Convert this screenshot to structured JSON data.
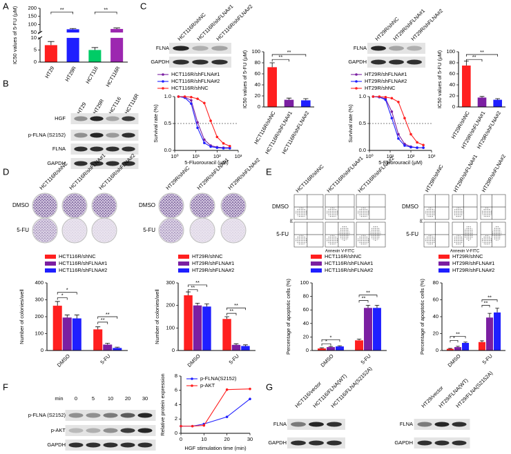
{
  "chart_data": [
    {
      "type": "bar",
      "ylabel": "IC50 values of 5-FU (μM)",
      "categories": [
        "HT29",
        "HT29R",
        "HCT116",
        "HCT116R"
      ],
      "values": [
        7,
        70,
        5,
        72
      ],
      "errors": [
        1.5,
        5,
        1,
        6
      ],
      "colors": [
        "#ff1f1f",
        "#1f1fff",
        "#00cc66",
        "#9c27b0"
      ],
      "ylim": [
        0,
        200
      ],
      "yticks": [
        0,
        5,
        10,
        50,
        100,
        150,
        200
      ],
      "axis_break": [
        10,
        50
      ],
      "annotations": [
        "**",
        "**"
      ]
    },
    {
      "type": "line",
      "ylabel": "Survival rate (%)",
      "xlabel": "5-Fluorouracil (μM)",
      "xscale": "log",
      "x": [
        1.5,
        3,
        6,
        12,
        25,
        50,
        100,
        200,
        400
      ],
      "xlim": [
        1,
        1000
      ],
      "xticks": [
        {
          "value": 1,
          "label": "10⁰"
        },
        {
          "value": 10,
          "label": "10¹"
        },
        {
          "value": 100,
          "label": "10²"
        },
        {
          "value": 1000,
          "label": "10³"
        }
      ],
      "ylim": [
        0,
        1
      ],
      "yticks": [
        {
          "value": 0,
          "label": "0.0"
        },
        0.5,
        {
          "value": 1,
          "label": "1.0"
        }
      ],
      "reference_line": 0.5,
      "series": [
        {
          "name": "HCT116R/shFLNA#1",
          "color": "#7b1fa2",
          "values": [
            1,
            0.99,
            0.93,
            0.52,
            0.2,
            0.09,
            0.06,
            0.05,
            0.05
          ]
        },
        {
          "name": "HCT116R/shFLNA#2",
          "color": "#1f1fff",
          "values": [
            1,
            0.98,
            0.87,
            0.42,
            0.14,
            0.07,
            0.05,
            0.04,
            0.04
          ]
        },
        {
          "name": "HCT116R/shNC",
          "color": "#ff1f1f",
          "values": [
            1,
            1,
            0.99,
            0.96,
            0.88,
            0.55,
            0.25,
            0.13,
            0.08
          ]
        }
      ]
    },
    {
      "type": "bar",
      "ylabel": "IC50 values of 5-FU (μM)",
      "categories": [
        "HCT116R/shNC",
        "HCT116R/shFLNA#1",
        "HCT116R/shFLNA#2"
      ],
      "values": [
        72,
        13,
        12
      ],
      "errors": [
        8,
        3,
        3
      ],
      "colors": [
        "#ff1f1f",
        "#7b1fa2",
        "#1f1fff"
      ],
      "ylim": [
        0,
        100
      ],
      "yticks": [
        0,
        20,
        40,
        60,
        80,
        100
      ],
      "annotations": [
        "**",
        "**"
      ]
    },
    {
      "type": "line",
      "ylabel": "Survival rate (%)",
      "xlabel": "5-Fluorouracil (μM)",
      "xscale": "log",
      "x": [
        1.5,
        3,
        6,
        12,
        25,
        50,
        100,
        200,
        400
      ],
      "xlim": [
        1,
        1000
      ],
      "xticks": [
        {
          "value": 1,
          "label": "10⁰"
        },
        {
          "value": 10,
          "label": "10¹"
        },
        {
          "value": 100,
          "label": "10²"
        },
        {
          "value": 1000,
          "label": "10³"
        }
      ],
      "ylim": [
        0,
        1
      ],
      "yticks": [
        {
          "value": 0,
          "label": "0.0"
        },
        0.5,
        {
          "value": 1,
          "label": "1.0"
        }
      ],
      "reference_line": 0.5,
      "series": [
        {
          "name": "HT29R/shFLNA#1",
          "color": "#7b1fa2",
          "values": [
            1,
            0.99,
            0.96,
            0.72,
            0.3,
            0.12,
            0.07,
            0.05,
            0.05
          ]
        },
        {
          "name": "HT29R/shFLNA#2",
          "color": "#1f1fff",
          "values": [
            1,
            0.99,
            0.94,
            0.6,
            0.22,
            0.09,
            0.06,
            0.05,
            0.05
          ]
        },
        {
          "name": "HT29R/shNC",
          "color": "#ff1f1f",
          "values": [
            1,
            1,
            0.99,
            0.97,
            0.9,
            0.6,
            0.3,
            0.15,
            0.1
          ]
        }
      ]
    },
    {
      "type": "bar",
      "ylabel": "IC50 values of 5-FU (μM)",
      "categories": [
        "HT29R/shNC",
        "HT29R/shFLNA#1",
        "HT29R/shFLNA#2"
      ],
      "values": [
        75,
        17,
        13
      ],
      "errors": [
        8,
        2,
        2
      ],
      "colors": [
        "#ff1f1f",
        "#7b1fa2",
        "#1f1fff"
      ],
      "ylim": [
        0,
        100
      ],
      "yticks": [
        0,
        20,
        40,
        60,
        80,
        100
      ],
      "annotations": [
        "**",
        "**"
      ]
    },
    {
      "type": "bar",
      "ylabel": "Number of colonies/well",
      "categories": [
        "DMSO",
        "5-FU"
      ],
      "ylim": [
        0,
        400
      ],
      "yticks": [
        0,
        100,
        200,
        300,
        400
      ],
      "annotations": [
        "*",
        "*",
        "**",
        "**"
      ],
      "series": [
        {
          "name": "HCT116R/shNC",
          "color": "#ff1f1f",
          "values": [
            265,
            125
          ],
          "errors": [
            25,
            15
          ]
        },
        {
          "name": "HCT116R/shFLNA#1",
          "color": "#7b1fa2",
          "values": [
            195,
            35
          ],
          "errors": [
            15,
            8
          ]
        },
        {
          "name": "HCT116R/shFLNA#2",
          "color": "#1f1fff",
          "values": [
            190,
            15
          ],
          "errors": [
            20,
            5
          ]
        }
      ]
    },
    {
      "type": "bar",
      "ylabel": "Number of colonies/well",
      "categories": [
        "DMSO",
        "5-FU"
      ],
      "ylim": [
        0,
        300
      ],
      "yticks": [
        0,
        100,
        200,
        300
      ],
      "annotations": [
        "**",
        "**",
        "**",
        "**"
      ],
      "series": [
        {
          "name": "HT29R/shNC",
          "color": "#ff1f1f",
          "values": [
            245,
            140
          ],
          "errors": [
            15,
            10
          ]
        },
        {
          "name": "HT29R/shFLNA#1",
          "color": "#7b1fa2",
          "values": [
            200,
            25
          ],
          "errors": [
            10,
            5
          ]
        },
        {
          "name": "HT29R/shFLNA#2",
          "color": "#1f1fff",
          "values": [
            195,
            20
          ],
          "errors": [
            12,
            5
          ]
        }
      ]
    },
    {
      "type": "bar",
      "ylabel": "Percentage of apoptotic cells (%)",
      "categories": [
        "DMSO",
        "5-FU"
      ],
      "ylim": [
        0,
        100
      ],
      "yticks": [
        0,
        20,
        40,
        60,
        80,
        100
      ],
      "annotations": [
        "*",
        "*",
        "**",
        "**"
      ],
      "series": [
        {
          "name": "HCT116R/shNC",
          "color": "#ff1f1f",
          "values": [
            3,
            15
          ],
          "errors": [
            1,
            2
          ]
        },
        {
          "name": "HCT116R/shFLNA#1",
          "color": "#7b1fa2",
          "values": [
            5,
            63
          ],
          "errors": [
            1,
            4
          ]
        },
        {
          "name": "HCT116R/shFLNA#2",
          "color": "#1f1fff",
          "values": [
            6,
            63
          ],
          "errors": [
            1,
            4
          ]
        }
      ]
    },
    {
      "type": "bar",
      "ylabel": "Percentage of apoptotic cells (%)",
      "categories": [
        "DMSO",
        "5-FU"
      ],
      "ylim": [
        0,
        80
      ],
      "yticks": [
        0,
        20,
        40,
        60,
        80
      ],
      "annotations": [
        "*",
        "**",
        "**",
        "**"
      ],
      "series": [
        {
          "name": "HT29R/shNC",
          "color": "#ff1f1f",
          "values": [
            2,
            10
          ],
          "errors": [
            0.5,
            1.5
          ]
        },
        {
          "name": "HT29R/shFLNA#1",
          "color": "#7b1fa2",
          "values": [
            4,
            39
          ],
          "errors": [
            1,
            5
          ]
        },
        {
          "name": "HT29R/shFLNA#2",
          "color": "#1f1fff",
          "values": [
            9,
            45
          ],
          "errors": [
            1,
            5
          ]
        }
      ]
    },
    {
      "type": "line",
      "ylabel": "Relative protein expression",
      "xlabel": "HGF stimulation time (min)",
      "x": [
        0,
        5,
        10,
        20,
        30
      ],
      "xlim": [
        0,
        30
      ],
      "xticks": [
        0,
        10,
        20,
        30
      ],
      "ylim": [
        0,
        8
      ],
      "yticks": [
        0,
        2,
        4,
        6,
        8
      ],
      "series": [
        {
          "name": "p-FLNA(S2152)",
          "color": "#1f1fff",
          "values": [
            1,
            1,
            1.3,
            2.3,
            4.8
          ]
        },
        {
          "name": "p-AKT",
          "color": "#ff1f1f",
          "values": [
            1,
            1,
            1.1,
            6.1,
            6.2
          ]
        }
      ]
    }
  ],
  "figure": {
    "panel_labels": [
      "A",
      "B",
      "C",
      "D",
      "E",
      "F",
      "G"
    ],
    "blot_b": {
      "lanes": [
        "HT29",
        "HT29R",
        "HCT116",
        "HCT116R"
      ],
      "rows": [
        "HGF",
        "p-FLNA (S2152)",
        "FLNA",
        "GAPDH"
      ]
    },
    "blot_c1": {
      "lanes": [
        "HCT116R/shNC",
        "HCT116R/shFLNA#1",
        "HCT116R/shFLNA#2"
      ],
      "rows": [
        "FLNA",
        "GAPDH"
      ]
    },
    "blot_c2": {
      "lanes": [
        "HT29R/shNC",
        "HT29R/shFLNA#1",
        "HT29R/shFLNA#2"
      ],
      "rows": [
        "FLNA",
        "GAPDH"
      ]
    },
    "colony_d1": {
      "columns": [
        "HCT116R/shNC",
        "HCT116R/shFLNA#1",
        "HCT116R/shFLNA#2"
      ],
      "rows": [
        "DMSO",
        "5-FU"
      ]
    },
    "colony_d2": {
      "columns": [
        "HT29R/shNC",
        "HT29R/shFLNA#1",
        "HT29R/shFLNA#2"
      ],
      "rows": [
        "DMSO",
        "5-FU"
      ]
    },
    "flow_e1": {
      "columns": [
        "HCT116R/shNC",
        "HCT116R/shFLNA#1",
        "HCT116R/shFLNA#2"
      ],
      "rows": [
        "DMSO",
        "5-FU"
      ],
      "xlabel": "Annexin V-FITC",
      "ylabel": "PI"
    },
    "flow_e2": {
      "columns": [
        "HT29R/shNC",
        "HT29R/shFLNA#1",
        "HT29R/shFLNA#2"
      ],
      "rows": [
        "DMSO",
        "5-FU"
      ],
      "xlabel": "Annexin V-FITC",
      "ylabel": "PI"
    },
    "blot_f": {
      "unit": "min",
      "lanes": [
        "0",
        "5",
        "10",
        "20",
        "30"
      ],
      "rows": [
        "p-FLNA (S2152)",
        "p-AKT",
        "GAPDH"
      ]
    },
    "blot_g1": {
      "lanes": [
        "HCT116/vector",
        "HCT116/FLNA(WT)",
        "HCT116/FLNA(S2152A)"
      ],
      "rows": [
        "FLNA",
        "GAPDH"
      ]
    },
    "blot_g2": {
      "lanes": [
        "HT29/vector",
        "HT29/FLNA(WT)",
        "HT29/FLNA(S2152A)"
      ],
      "rows": [
        "FLNA",
        "GAPDH"
      ]
    }
  }
}
